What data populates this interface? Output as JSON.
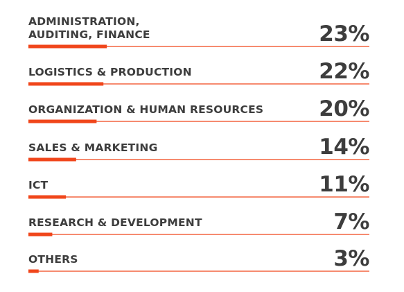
{
  "chart_data": {
    "type": "bar",
    "categories": [
      "ADMINISTRATION, AUDITING, FINANCE",
      "LOGISTICS & PRODUCTION",
      "ORGANIZATION & HUMAN RESOURCES",
      "SALES & MARKETING",
      "ICT",
      "RESEARCH & DEVELOPMENT",
      "OTHERS"
    ],
    "category_lines": [
      [
        "ADMINISTRATION,",
        "AUDITING, FINANCE"
      ],
      [
        "LOGISTICS & PRODUCTION"
      ],
      [
        "ORGANIZATION & HUMAN RESOURCES"
      ],
      [
        "SALES & MARKETING"
      ],
      [
        "ICT"
      ],
      [
        "RESEARCH & DEVELOPMENT"
      ],
      [
        "OTHERS"
      ]
    ],
    "values": [
      23,
      22,
      20,
      14,
      11,
      7,
      3
    ],
    "value_labels": [
      "23%",
      "22%",
      "20%",
      "14%",
      "11%",
      "7%",
      "3%"
    ],
    "title": "",
    "xlabel": "",
    "ylabel": "",
    "xlim": [
      0,
      100
    ],
    "orientation": "horizontal",
    "grid": false,
    "legend": "none"
  },
  "colors": {
    "accent": "#f0461b",
    "text": "#3d3d3d",
    "background": "#ffffff"
  }
}
